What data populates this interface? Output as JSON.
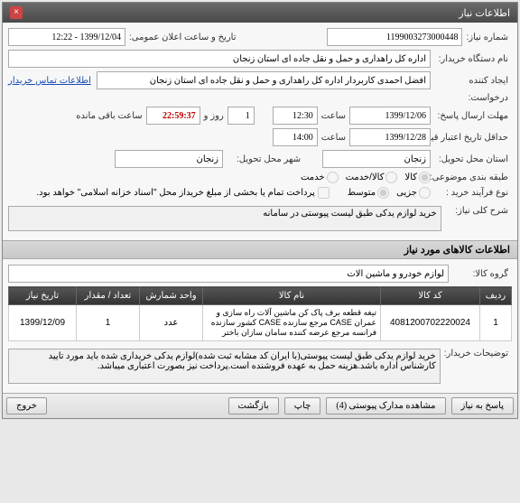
{
  "panel": {
    "title": "اطلاعات نیاز"
  },
  "labels": {
    "need_no": "شماره نیاز:",
    "pub_datetime": "تاریخ و ساعت اعلان عمومی:",
    "buyer_org": "نام دستگاه خریدار:",
    "creator": "ایجاد کننده",
    "request": "درخواست:",
    "answer_deadline": "مهلت ارسال پاسخ:",
    "until_date": "تا تاریخ:",
    "price_validity": "حداقل تاریخ اعتبار قیمت: تا تاریخ:",
    "delivery_state": "استان محل تحویل:",
    "delivery_city": "شهر محل تحویل:",
    "budget_type": "طبقه بندی موضوعی:",
    "purchase_type": "نوع فرآیند خرید :",
    "partial_pay": "پرداخت تمام یا بخشی از مبلغ خریداز محل \"اسناد خزانه اسلامی\" خواهد بود.",
    "need_desc": "شرح کلی نیاز:",
    "goods_info": "اطلاعات کالاهای مورد نیاز",
    "goods_group": "گروه کالا:",
    "buyer_notes": "توضیحات خریدار:",
    "contact_link": "اطلاعات تماس خریدار",
    "hour": "ساعت",
    "day_and": "روز و",
    "hours_remain": "ساعت باقی مانده"
  },
  "fields": {
    "need_no": "1199003273000448",
    "pub_datetime": "1399/12/04 - 12:22",
    "buyer_org": "اداره کل راهداری و حمل و نقل جاده ای استان زنجان",
    "creator": "افضل احمدی کاربردار اداره کل راهداری و حمل و نقل جاده ای استان زنجان",
    "answer_date": "1399/12/06",
    "answer_time": "12:30",
    "days_remain": "1",
    "countdown": "22:59:37",
    "price_date": "1399/12/28",
    "price_time": "14:00",
    "delivery_state": "زنجان",
    "delivery_city": "زنجان",
    "need_desc": "خرید لوازم یدکی طبق لیست پیوستی در سامانه",
    "goods_group": "لوازم خودرو و ماشین آلات",
    "buyer_notes": "خرید لوازم یدکی طبق لیست پیوستی(با ایران کد مشابه ثبت شده)لوازم یدکی خریداری شده باید مورد تایید کارشناس اداره باشد.هزینه حمل به عهده فروشنده است.پرداخت نیز بصورت اعتباری میباشد."
  },
  "budget_options": {
    "goods": "کالا",
    "goods_service": "کالا/خدمت",
    "service": "خدمت"
  },
  "purchase_options": {
    "low": "جزیی",
    "mid": "متوسط"
  },
  "table": {
    "headers": {
      "row": "ردیف",
      "code": "کد کالا",
      "name": "نام کالا",
      "unit": "واحد شمارش",
      "qty": "تعداد / مقدار",
      "need_date": "تاریخ نیاز"
    },
    "rows": [
      {
        "row": "1",
        "code": "4081200702220024",
        "name": "تیغه قطعه برف پاک کن ماشین آلات راه سازی و عمران CASE مرجع سازنده CASE کشور سازنده فرانسه مرجع عرضه کننده سامان سازان باختر",
        "unit": "عدد",
        "qty": "1",
        "need_date": "1399/12/09"
      }
    ]
  },
  "buttons": {
    "back": "پاسخ به نیاز",
    "attachments": "مشاهده مدارک پیوستی (4)",
    "print": "چاپ",
    "refresh": "بازگشت",
    "exit": "خروج"
  }
}
